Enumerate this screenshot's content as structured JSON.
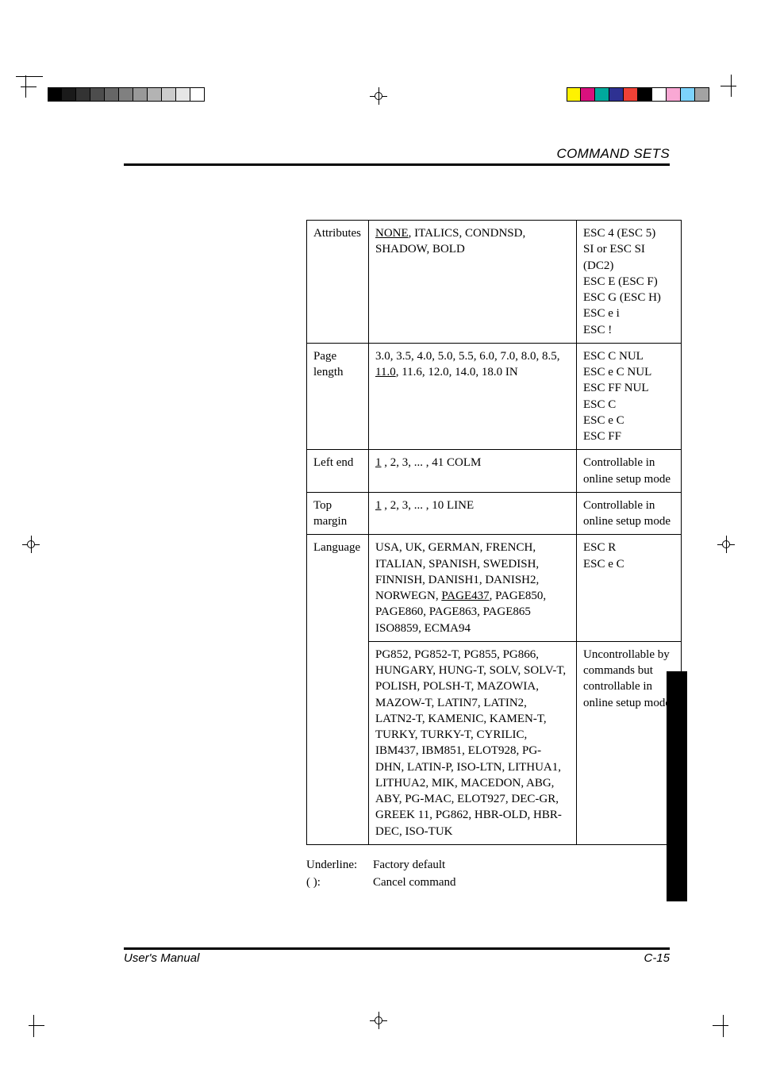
{
  "page": {
    "running_head": "COMMAND SETS",
    "footer_left": "User's Manual",
    "footer_right": "C-15"
  },
  "legend": {
    "underline_key": "Underline:",
    "underline_val": "Factory default",
    "paren_key": "(          ):",
    "paren_val": "Cancel command"
  },
  "colorbar_left": [
    "#000000",
    "#1a1a1a",
    "#333333",
    "#4d4d4d",
    "#666666",
    "#808080",
    "#999999",
    "#b3b3b3",
    "#cccccc",
    "#e6e6e6",
    "#ffffff"
  ],
  "colorbar_right": [
    "#fff200",
    "#d8117d",
    "#00a99d",
    "#2e3192",
    "#ef4136",
    "#000000",
    "#ffffff",
    "#f9a8d4",
    "#7dd3fc",
    "#a3a3a3"
  ],
  "table": {
    "rows": [
      {
        "label": "Attributes",
        "opts_html": "<span class='u'>NONE</span>, ITALICS, CONDNSD, SHADOW, BOLD",
        "cmd_html": "ESC 4 (ESC 5)<br>SI or ESC SI<br>(DC2)<br>ESC E (ESC F)<br>ESC G (ESC H)<br>ESC e i<br>ESC !"
      },
      {
        "label": "Page length",
        "opts_html": "3.0, 3.5, 4.0, 5.0, 5.5, 6.0, 7.0, 8.0, 8.5, <span class='u'>11.0</span>, 11.6, 12.0, 14.0, 18.0 IN",
        "cmd_html": "ESC C NUL<br>ESC e C NUL<br>ESC FF NUL<br>ESC C<br>ESC e C<br>ESC FF"
      },
      {
        "label": "Left end",
        "opts_html": "<span class='u'>1</span> , 2, 3, ... , 41 COLM",
        "cmd_html": "Controllable in online setup mode"
      },
      {
        "label": "Top margin",
        "opts_html": "<span class='u'>1</span> , 2, 3, ... , 10 LINE",
        "cmd_html": "Controllable in online setup mode"
      },
      {
        "label": "Language",
        "rowspan_label": 2,
        "opts_html": "USA, UK, GERMAN, FRENCH, ITALIAN, SPANISH, SWEDISH, FINNISH, DANISH1, DANISH2, NORWEGN, <span class='u'>PAGE437</span>, PAGE850, PAGE860, PAGE863, PAGE865 ISO8859, ECMA94",
        "cmd_html": "ESC R<br>ESC e C"
      },
      {
        "label": "",
        "skip_label": true,
        "opts_html": "PG852, PG852-T, PG855, PG866, HUNGARY, HUNG-T, SOLV, SOLV-T, POLISH, POLSH-T, MAZOWIA, MAZOW-T, LATIN7, LATIN2, LATN2-T, KAMENIC, KAMEN-T, TURKY, TURKY-T, CYRILIC, IBM437, IBM851, ELOT928, PG-DHN, LATIN-P, ISO-LTN, LITHUA1, LITHUA2, MIK, MACEDON, ABG, ABY, PG-MAC, ELOT927, DEC-GR, GREEK 11, PG862, HBR-OLD, HBR-DEC, ISO-TUK",
        "cmd_html": "Uncontrollable by commands but controllable in online setup mode"
      }
    ]
  }
}
